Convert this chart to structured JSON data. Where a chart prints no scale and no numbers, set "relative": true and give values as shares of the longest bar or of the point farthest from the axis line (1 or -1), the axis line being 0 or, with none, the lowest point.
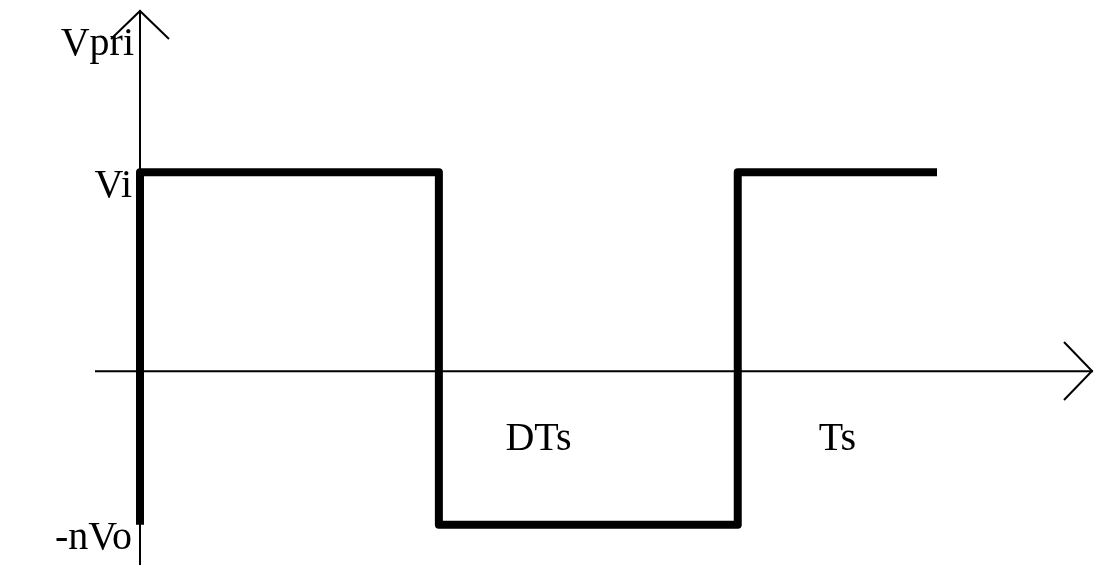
{
  "chart_data": {
    "type": "step",
    "relative": true,
    "ylabel": "Vpri",
    "categories": [
      null,
      null,
      null,
      null,
      "DTs",
      null,
      null,
      "Ts",
      null
    ],
    "series": [
      {
        "color": "#000000",
        "values": [
          -0.77,
          1,
          1,
          1,
          -0.77,
          -0.77,
          -0.77,
          1,
          1
        ]
      }
    ],
    "annotations": [
      "Vi",
      "-nVo"
    ],
    "marker": "none",
    "line_style": "solid"
  }
}
